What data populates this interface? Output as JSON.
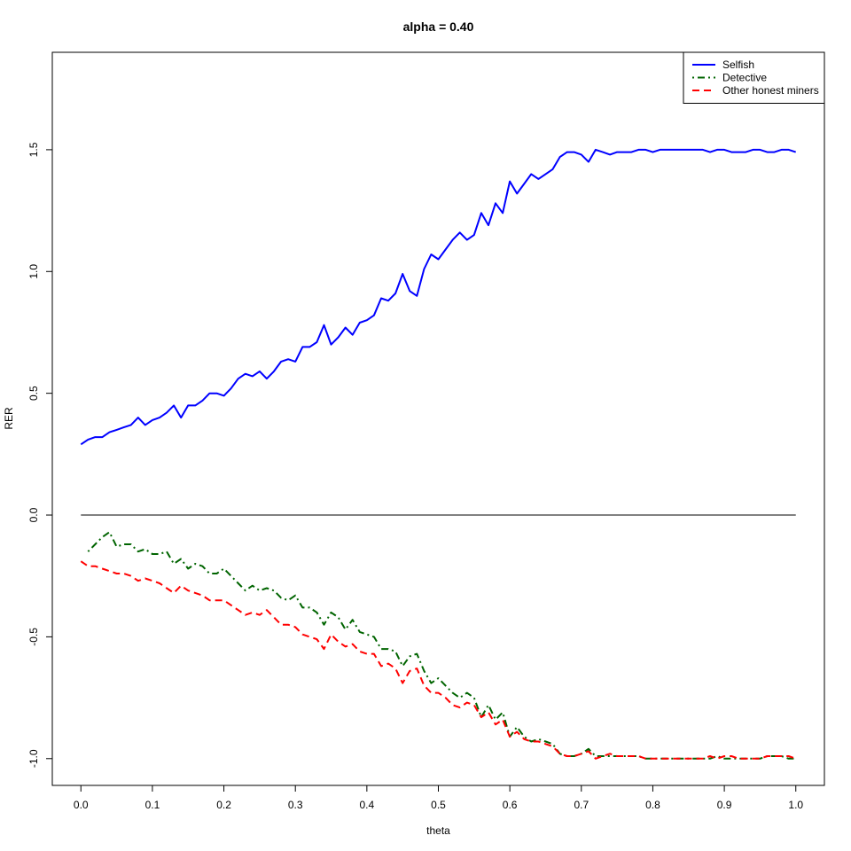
{
  "chart_data": {
    "type": "line",
    "title": "alpha = 0.40",
    "xlabel": "theta",
    "ylabel": "RER",
    "xlim": [
      -0.04,
      1.04
    ],
    "ylim": [
      -1.11,
      1.9
    ],
    "x_ticks": [
      "0.0",
      "0.1",
      "0.2",
      "0.3",
      "0.4",
      "0.5",
      "0.6",
      "0.7",
      "0.8",
      "0.9",
      "1.0"
    ],
    "y_ticks": [
      "-1.0",
      "-0.5",
      "0.0",
      "0.5",
      "1.0",
      "1.5"
    ],
    "legend_position": "top-right",
    "reference_line": {
      "y": 0,
      "x": [
        0,
        1
      ],
      "color": "#000000"
    },
    "series": [
      {
        "name": "Selfish",
        "color": "#0000ff",
        "style": "solid",
        "x": [
          0.0,
          0.01,
          0.02,
          0.03,
          0.04,
          0.05,
          0.06,
          0.07,
          0.08,
          0.09,
          0.1,
          0.11,
          0.12,
          0.13,
          0.14,
          0.15,
          0.16,
          0.17,
          0.18,
          0.19,
          0.2,
          0.21,
          0.22,
          0.23,
          0.24,
          0.25,
          0.26,
          0.27,
          0.28,
          0.29,
          0.3,
          0.31,
          0.32,
          0.33,
          0.34,
          0.35,
          0.36,
          0.37,
          0.38,
          0.39,
          0.4,
          0.41,
          0.42,
          0.43,
          0.44,
          0.45,
          0.46,
          0.47,
          0.48,
          0.49,
          0.5,
          0.51,
          0.52,
          0.53,
          0.54,
          0.55,
          0.56,
          0.57,
          0.58,
          0.59,
          0.6,
          0.61,
          0.62,
          0.63,
          0.64,
          0.65,
          0.66,
          0.67,
          0.68,
          0.69,
          0.7,
          0.71,
          0.72,
          0.73,
          0.74,
          0.75,
          0.76,
          0.77,
          0.78,
          0.79,
          0.8,
          0.81,
          0.82,
          0.83,
          0.84,
          0.85,
          0.86,
          0.87,
          0.88,
          0.89,
          0.9,
          0.91,
          0.92,
          0.93,
          0.94,
          0.95,
          0.96,
          0.97,
          0.98,
          0.99,
          1.0
        ],
        "y": [
          0.29,
          0.31,
          0.32,
          0.32,
          0.34,
          0.35,
          0.36,
          0.37,
          0.4,
          0.37,
          0.39,
          0.4,
          0.42,
          0.45,
          0.4,
          0.45,
          0.45,
          0.47,
          0.5,
          0.5,
          0.49,
          0.52,
          0.56,
          0.58,
          0.57,
          0.59,
          0.56,
          0.59,
          0.63,
          0.64,
          0.63,
          0.69,
          0.69,
          0.71,
          0.78,
          0.7,
          0.73,
          0.77,
          0.74,
          0.79,
          0.8,
          0.82,
          0.89,
          0.88,
          0.91,
          0.99,
          0.92,
          0.9,
          1.01,
          1.07,
          1.05,
          1.09,
          1.13,
          1.16,
          1.13,
          1.15,
          1.24,
          1.19,
          1.28,
          1.24,
          1.37,
          1.32,
          1.36,
          1.4,
          1.38,
          1.4,
          1.42,
          1.47,
          1.49,
          1.49,
          1.48,
          1.45,
          1.5,
          1.49,
          1.48,
          1.49,
          1.49,
          1.49,
          1.5,
          1.5,
          1.49,
          1.5,
          1.5,
          1.5,
          1.5,
          1.5,
          1.5,
          1.5,
          1.49,
          1.5,
          1.5,
          1.49,
          1.49,
          1.49,
          1.5,
          1.5,
          1.49,
          1.49,
          1.5,
          1.5,
          1.49
        ]
      },
      {
        "name": "Detective",
        "color": "#006400",
        "style": "dotdash",
        "x": [
          0.01,
          0.02,
          0.03,
          0.04,
          0.05,
          0.06,
          0.07,
          0.08,
          0.09,
          0.1,
          0.11,
          0.12,
          0.13,
          0.14,
          0.15,
          0.16,
          0.17,
          0.18,
          0.19,
          0.2,
          0.21,
          0.22,
          0.23,
          0.24,
          0.25,
          0.26,
          0.27,
          0.28,
          0.29,
          0.3,
          0.31,
          0.32,
          0.33,
          0.34,
          0.35,
          0.36,
          0.37,
          0.38,
          0.39,
          0.4,
          0.41,
          0.42,
          0.43,
          0.44,
          0.45,
          0.46,
          0.47,
          0.48,
          0.49,
          0.5,
          0.51,
          0.52,
          0.53,
          0.54,
          0.55,
          0.56,
          0.57,
          0.58,
          0.59,
          0.6,
          0.61,
          0.62,
          0.63,
          0.64,
          0.65,
          0.66,
          0.67,
          0.68,
          0.69,
          0.7,
          0.71,
          0.72,
          0.73,
          0.74,
          0.75,
          0.76,
          0.77,
          0.78,
          0.79,
          0.8,
          0.81,
          0.82,
          0.83,
          0.84,
          0.85,
          0.86,
          0.87,
          0.88,
          0.89,
          0.9,
          0.91,
          0.92,
          0.93,
          0.94,
          0.95,
          0.96,
          0.97,
          0.98,
          0.99,
          1.0
        ],
        "y": [
          -0.15,
          -0.12,
          -0.09,
          -0.07,
          -0.13,
          -0.12,
          -0.12,
          -0.15,
          -0.14,
          -0.16,
          -0.16,
          -0.15,
          -0.2,
          -0.18,
          -0.22,
          -0.2,
          -0.21,
          -0.24,
          -0.24,
          -0.22,
          -0.25,
          -0.28,
          -0.31,
          -0.29,
          -0.31,
          -0.3,
          -0.31,
          -0.34,
          -0.35,
          -0.33,
          -0.38,
          -0.38,
          -0.4,
          -0.45,
          -0.4,
          -0.42,
          -0.47,
          -0.43,
          -0.48,
          -0.49,
          -0.5,
          -0.55,
          -0.55,
          -0.56,
          -0.62,
          -0.58,
          -0.57,
          -0.64,
          -0.69,
          -0.67,
          -0.7,
          -0.73,
          -0.75,
          -0.73,
          -0.75,
          -0.83,
          -0.78,
          -0.84,
          -0.81,
          -0.91,
          -0.87,
          -0.91,
          -0.93,
          -0.92,
          -0.93,
          -0.94,
          -0.98,
          -0.99,
          -0.99,
          -0.98,
          -0.96,
          -0.99,
          -0.99,
          -0.99,
          -0.99,
          -0.99,
          -0.99,
          -0.99,
          -1.0,
          -1.0,
          -1.0,
          -1.0,
          -1.0,
          -1.0,
          -1.0,
          -1.0,
          -1.0,
          -1.0,
          -0.99,
          -1.0,
          -1.0,
          -1.0,
          -1.0,
          -1.0,
          -1.0,
          -0.99,
          -0.99,
          -0.99,
          -1.0,
          -1.0
        ]
      },
      {
        "name": "Other honest miners",
        "color": "#ff0000",
        "style": "dashed",
        "x": [
          0.0,
          0.01,
          0.02,
          0.03,
          0.04,
          0.05,
          0.06,
          0.07,
          0.08,
          0.09,
          0.1,
          0.11,
          0.12,
          0.13,
          0.14,
          0.15,
          0.16,
          0.17,
          0.18,
          0.19,
          0.2,
          0.21,
          0.22,
          0.23,
          0.24,
          0.25,
          0.26,
          0.27,
          0.28,
          0.29,
          0.3,
          0.31,
          0.32,
          0.33,
          0.34,
          0.35,
          0.36,
          0.37,
          0.38,
          0.39,
          0.4,
          0.41,
          0.42,
          0.43,
          0.44,
          0.45,
          0.46,
          0.47,
          0.48,
          0.49,
          0.5,
          0.51,
          0.52,
          0.53,
          0.54,
          0.55,
          0.56,
          0.57,
          0.58,
          0.59,
          0.6,
          0.61,
          0.62,
          0.63,
          0.64,
          0.65,
          0.66,
          0.67,
          0.68,
          0.69,
          0.7,
          0.71,
          0.72,
          0.73,
          0.74,
          0.75,
          0.76,
          0.77,
          0.78,
          0.79,
          0.8,
          0.81,
          0.82,
          0.83,
          0.84,
          0.85,
          0.86,
          0.87,
          0.88,
          0.89,
          0.9,
          0.91,
          0.92,
          0.93,
          0.94,
          0.95,
          0.96,
          0.97,
          0.98,
          0.99,
          1.0
        ],
        "y": [
          -0.19,
          -0.21,
          -0.21,
          -0.22,
          -0.23,
          -0.24,
          -0.24,
          -0.25,
          -0.27,
          -0.26,
          -0.27,
          -0.28,
          -0.3,
          -0.32,
          -0.29,
          -0.31,
          -0.32,
          -0.33,
          -0.35,
          -0.35,
          -0.35,
          -0.37,
          -0.39,
          -0.41,
          -0.4,
          -0.41,
          -0.39,
          -0.42,
          -0.45,
          -0.45,
          -0.46,
          -0.49,
          -0.5,
          -0.51,
          -0.55,
          -0.49,
          -0.52,
          -0.54,
          -0.53,
          -0.56,
          -0.57,
          -0.57,
          -0.62,
          -0.61,
          -0.63,
          -0.69,
          -0.64,
          -0.63,
          -0.7,
          -0.73,
          -0.73,
          -0.75,
          -0.78,
          -0.79,
          -0.77,
          -0.78,
          -0.83,
          -0.81,
          -0.86,
          -0.84,
          -0.91,
          -0.89,
          -0.92,
          -0.93,
          -0.93,
          -0.94,
          -0.95,
          -0.98,
          -0.99,
          -0.99,
          -0.98,
          -0.97,
          -1.0,
          -0.99,
          -0.98,
          -0.99,
          -0.99,
          -0.99,
          -0.99,
          -1.0,
          -1.0,
          -1.0,
          -1.0,
          -1.0,
          -1.0,
          -1.0,
          -1.0,
          -1.0,
          -0.99,
          -1.0,
          -0.99,
          -0.99,
          -1.0,
          -1.0,
          -1.0,
          -1.0,
          -0.99,
          -0.99,
          -0.99,
          -0.99,
          -1.0
        ]
      }
    ]
  }
}
